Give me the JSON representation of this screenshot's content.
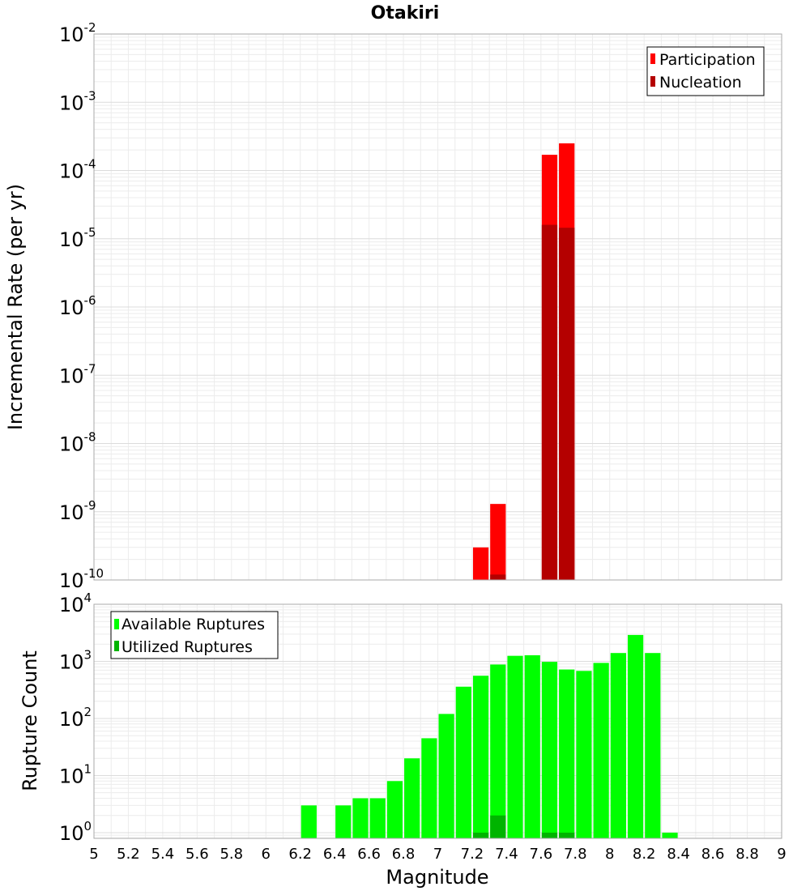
{
  "chart_data": [
    {
      "type": "bar",
      "title": "Otakiri",
      "xlabel": "",
      "ylabel": "Incremental Rate (per yr)",
      "scale": "log",
      "grid": true,
      "legend_position": "top-right",
      "xlim": [
        5,
        9
      ],
      "ylim_exponents": [
        -10,
        -2
      ],
      "y_tick_exponents": [
        -10,
        -9,
        -8,
        -7,
        -6,
        -5,
        -4,
        -3,
        -2
      ],
      "bin_width": 0.1,
      "series": [
        {
          "name": "Participation",
          "color": "#ff0000",
          "points": [
            {
              "x": 7.25,
              "y": 3e-10
            },
            {
              "x": 7.35,
              "y": 1.3e-09
            },
            {
              "x": 7.65,
              "y": 0.00017
            },
            {
              "x": 7.75,
              "y": 0.00025
            }
          ]
        },
        {
          "name": "Nucleation",
          "color": "#b40000",
          "points": [
            {
              "x": 7.35,
              "y": 1.2e-10
            },
            {
              "x": 7.65,
              "y": 1.6e-05
            },
            {
              "x": 7.75,
              "y": 1.45e-05
            }
          ]
        }
      ]
    },
    {
      "type": "bar",
      "title": "",
      "xlabel": "Magnitude",
      "ylabel": "Rupture Count",
      "scale": "log",
      "grid": true,
      "legend_position": "top-left",
      "xlim": [
        5,
        9
      ],
      "ylim_exponents": [
        -0.1,
        4
      ],
      "y_tick_exponents": [
        0,
        1,
        2,
        3,
        4
      ],
      "x_ticks": [
        "5",
        "5.2",
        "5.4",
        "5.6",
        "5.8",
        "6",
        "6.2",
        "6.4",
        "6.6",
        "6.8",
        "7",
        "7.2",
        "7.4",
        "7.6",
        "7.8",
        "8",
        "8.2",
        "8.4",
        "8.6",
        "8.8",
        "9"
      ],
      "bin_width": 0.1,
      "series": [
        {
          "name": "Available Ruptures",
          "color": "#00ff00",
          "points": [
            {
              "x": 6.25,
              "y": 3
            },
            {
              "x": 6.45,
              "y": 3
            },
            {
              "x": 6.55,
              "y": 4
            },
            {
              "x": 6.65,
              "y": 4
            },
            {
              "x": 6.75,
              "y": 8
            },
            {
              "x": 6.85,
              "y": 20
            },
            {
              "x": 6.95,
              "y": 45
            },
            {
              "x": 7.05,
              "y": 120
            },
            {
              "x": 7.15,
              "y": 360
            },
            {
              "x": 7.25,
              "y": 560
            },
            {
              "x": 7.35,
              "y": 880
            },
            {
              "x": 7.45,
              "y": 1250
            },
            {
              "x": 7.55,
              "y": 1280
            },
            {
              "x": 7.65,
              "y": 980
            },
            {
              "x": 7.75,
              "y": 720
            },
            {
              "x": 7.85,
              "y": 680
            },
            {
              "x": 7.95,
              "y": 940
            },
            {
              "x": 8.05,
              "y": 1400
            },
            {
              "x": 8.15,
              "y": 2900
            },
            {
              "x": 8.25,
              "y": 1400
            },
            {
              "x": 8.35,
              "y": 1
            }
          ]
        },
        {
          "name": "Utilized Ruptures",
          "color": "#00b400",
          "points": [
            {
              "x": 7.25,
              "y": 1
            },
            {
              "x": 7.35,
              "y": 2
            },
            {
              "x": 7.65,
              "y": 1
            },
            {
              "x": 7.75,
              "y": 1
            }
          ]
        }
      ]
    }
  ]
}
